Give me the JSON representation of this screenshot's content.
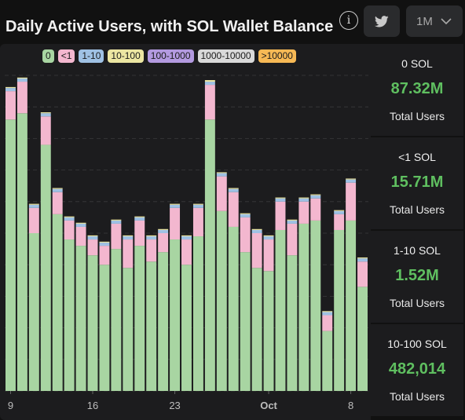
{
  "header": {
    "title": "Daily Active Users, with SOL Wallet Balance",
    "info_glyph": "i",
    "twitter_icon": "twitter-icon",
    "range_value": "1M"
  },
  "colors": {
    "background": "#111111",
    "panel": "#1c1c1e",
    "accent_green": "#5fbf60",
    "gridline": "#3a3a3c"
  },
  "legend": [
    {
      "label": "0",
      "color": "#a8d5a2"
    },
    {
      "label": "<1",
      "color": "#f3b7cf"
    },
    {
      "label": "1-10",
      "color": "#9fc1e4"
    },
    {
      "label": "10-100",
      "color": "#ece6a2"
    },
    {
      "label": "100-1000",
      "color": "#b39ae0"
    },
    {
      "label": "1000-10000",
      "color": "#d9d9d9"
    },
    {
      "label": ">10000",
      "color": "#f7b955"
    }
  ],
  "stats": [
    {
      "label": "0 SOL",
      "value": "87.32M",
      "sub": "Total Users"
    },
    {
      "label": "<1 SOL",
      "value": "15.71M",
      "sub": "Total Users"
    },
    {
      "label": "1-10 SOL",
      "value": "1.52M",
      "sub": "Total Users"
    },
    {
      "label": "10-100 SOL",
      "value": "482,014",
      "sub": "Total Users"
    }
  ],
  "chart_data": {
    "type": "bar",
    "stacked": true,
    "title": "Daily Active Users, with SOL Wallet Balance",
    "x_tick_labels": [
      "9",
      "16",
      "23",
      "Oct",
      "8"
    ],
    "x_tick_index": [
      0,
      7,
      14,
      22,
      29
    ],
    "ylim": [
      0,
      100
    ],
    "y_axis_labels_shown": false,
    "grid": true,
    "legend_position": "top",
    "series": [
      {
        "name": "0",
        "values": [
          86,
          88,
          50,
          78,
          56,
          48,
          46,
          43,
          40,
          45,
          39,
          46,
          41,
          44,
          48,
          40,
          49,
          86,
          57,
          52,
          44,
          39,
          38,
          51,
          43,
          53,
          54,
          19,
          51,
          54,
          33
        ]
      },
      {
        "name": "<1",
        "values": [
          9,
          10,
          8,
          9,
          7,
          6,
          6,
          5,
          6,
          8,
          9,
          8,
          7,
          6,
          10,
          8,
          9,
          11,
          11,
          11,
          11,
          11,
          10,
          9,
          10,
          7,
          7,
          5,
          5,
          12,
          8
        ]
      },
      {
        "name": "1-10",
        "values": [
          1,
          1,
          1,
          1,
          1,
          1,
          1,
          1,
          1,
          1,
          1,
          1,
          1,
          1,
          1,
          1,
          1,
          1,
          1,
          1,
          1,
          1,
          1,
          1,
          1,
          1,
          1,
          1,
          1,
          1,
          1
        ]
      },
      {
        "name": "10-100",
        "values": [
          0.3,
          0.3,
          0.3,
          0.3,
          0.3,
          0.3,
          0.3,
          0.3,
          0.3,
          0.3,
          0.3,
          0.3,
          0.3,
          0.3,
          0.3,
          0.3,
          0.3,
          0.5,
          0.3,
          0.3,
          0.3,
          0.3,
          0.3,
          0.3,
          0.3,
          0.3,
          0.3,
          0.3,
          0.3,
          0.3,
          0.3
        ]
      }
    ]
  }
}
